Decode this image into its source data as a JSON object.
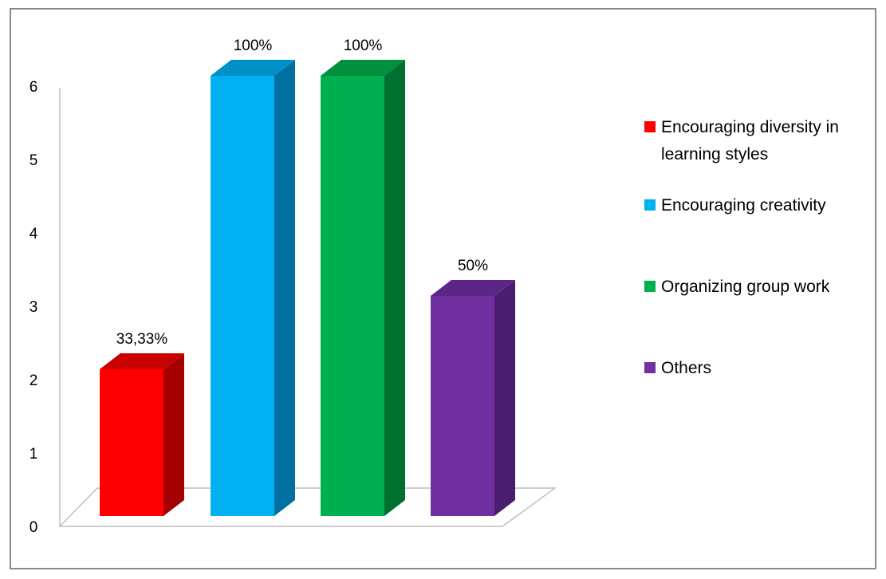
{
  "chart_data": {
    "type": "bar",
    "style": "3d-column",
    "categories": [
      "Encouraging diversity in learning styles",
      "Encouraging creativity",
      "Organizing group work",
      "Others"
    ],
    "values": [
      2,
      6,
      6,
      3
    ],
    "data_labels": [
      "33,33%",
      "100%",
      "100%",
      "50%"
    ],
    "colors": [
      "#ff0000",
      "#00b0f0",
      "#00b050",
      "#7030a0"
    ],
    "side_colors": [
      "#a50000",
      "#0070a0",
      "#007030",
      "#4a1e6e"
    ],
    "top_colors": [
      "#c80000",
      "#0090c8",
      "#00903e",
      "#5c2688"
    ],
    "y_ticks": [
      "0",
      "1",
      "2",
      "3",
      "4",
      "5",
      "6"
    ],
    "ylim": [
      0,
      6
    ],
    "grid": false,
    "legend": {
      "position": "right",
      "entries": [
        {
          "lines": [
            "Encouraging diversity in",
            "learning styles"
          ]
        },
        {
          "lines": [
            "Encouraging creativity"
          ]
        },
        {
          "lines": [
            "Organizing group work"
          ]
        },
        {
          "lines": [
            "Others"
          ]
        }
      ]
    },
    "title": "",
    "xlabel": "",
    "ylabel": ""
  }
}
